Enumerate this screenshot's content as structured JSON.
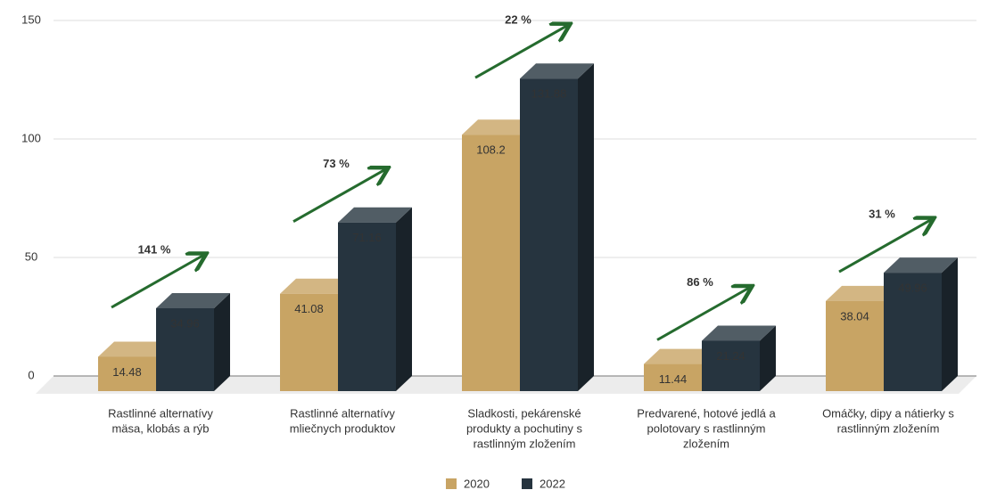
{
  "chart_data": {
    "type": "bar3d",
    "categories": [
      [
        "Rastlinné alternatívy",
        "mäsa, klobás a rýb"
      ],
      [
        "Rastlinné alternatívy",
        "mliečnych produktov"
      ],
      [
        "Sladkosti, pekárenské",
        "produkty a pochutiny s",
        "rastlinným zložením"
      ],
      [
        "Predvarené, hotové jedlá a",
        "polotovary s rastlinným",
        "zložením"
      ],
      [
        "Omáčky, dipy a nátierky s",
        "rastlinným zložením"
      ]
    ],
    "series": [
      {
        "name": "2020",
        "color": "#c8a464",
        "values": [
          14.48,
          41.08,
          108.2,
          11.44,
          38.04
        ]
      },
      {
        "name": "2022",
        "color": "#26343f",
        "values": [
          34.96,
          71.16,
          131.88,
          21.24,
          49.96
        ]
      }
    ],
    "annotations": [
      "141 %",
      "73 %",
      "22 %",
      "86 %",
      "31 %"
    ],
    "annotation_color": "#256b2e",
    "ylim": [
      0,
      150
    ],
    "yticks": [
      0,
      50,
      100,
      150
    ],
    "grid": true,
    "legend": "bottom"
  }
}
